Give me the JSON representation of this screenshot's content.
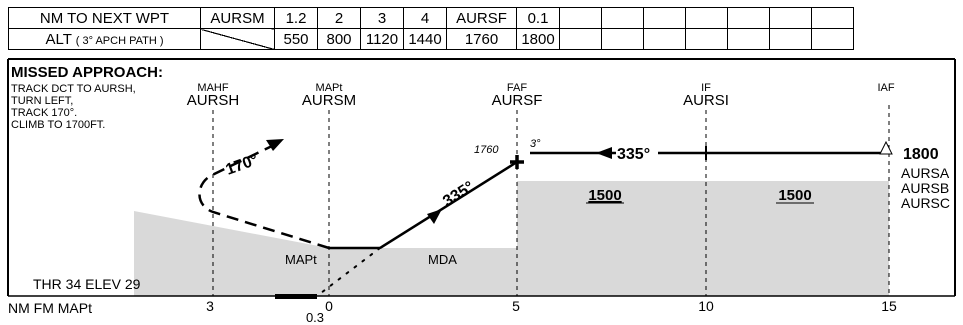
{
  "table": {
    "row1": {
      "header": "NM TO NEXT WPT",
      "cells": [
        "AURSM",
        "1.2",
        "2",
        "3",
        "4",
        "AURSF",
        "0.1",
        "",
        "",
        "",
        "",
        "",
        "",
        ""
      ]
    },
    "row2": {
      "header_main": "ALT",
      "header_sub": "( 3° APCH PATH )",
      "cells": [
        "",
        "550",
        "800",
        "1120",
        "1440",
        "1760",
        "1800",
        "",
        "",
        "",
        "",
        "",
        "",
        ""
      ]
    }
  },
  "missed_approach": {
    "title": "MISSED APPROACH:",
    "lines": [
      "TRACK DCT TO AURSH,",
      "TURN LEFT,",
      "TRACK 170°.",
      "CLIMB TO 1700FT."
    ]
  },
  "fixes": [
    {
      "role": "MAHF",
      "name": "AURSH"
    },
    {
      "role": "MAPt",
      "name": "AURSM"
    },
    {
      "role": "FAF",
      "name": "AURSF"
    },
    {
      "role": "IF",
      "name": "AURSI"
    },
    {
      "role": "IAF",
      "name": ""
    }
  ],
  "iaf_names": [
    "AURSA",
    "AURSB",
    "AURSC"
  ],
  "labels": {
    "faf_alt": "1760",
    "glide_angle": "3°",
    "inbound_track": "335°",
    "final_track": "335°",
    "missed_track": "170°",
    "iaf_alt": "1800",
    "msa_left": "1500",
    "msa_right": "1500",
    "mapt": "MAPt",
    "mda": "MDA",
    "thr": "THR 34 ELEV 29",
    "axis_title": "NM FM MAPt",
    "runway_offset": "0.3"
  },
  "axis_ticks": [
    "3",
    "0",
    "5",
    "10",
    "15"
  ]
}
